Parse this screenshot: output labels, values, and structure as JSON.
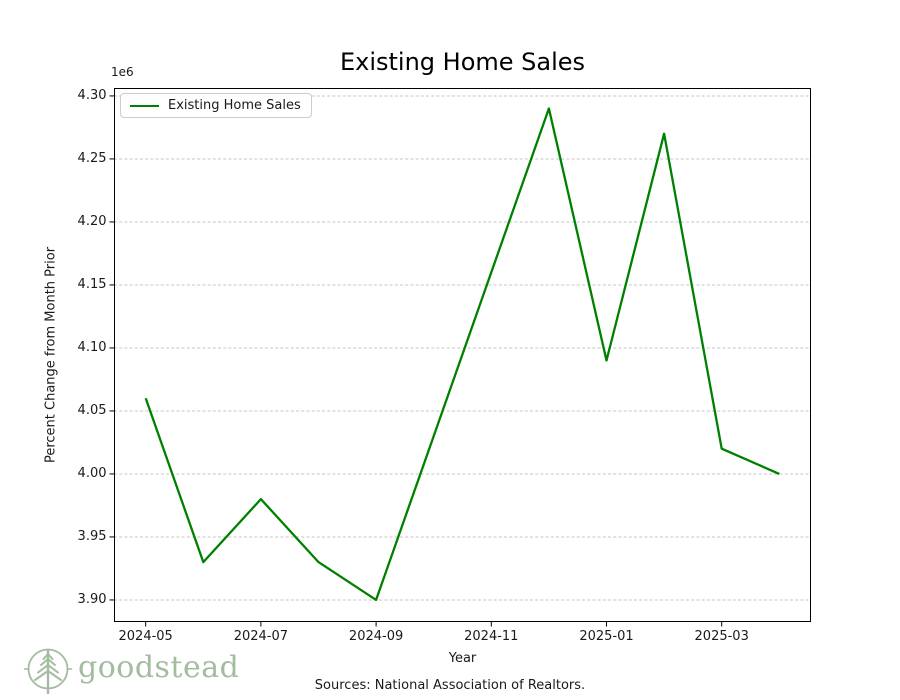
{
  "title": "Existing Home Sales",
  "axes": {
    "ylabel": "Percent Change from Month Prior",
    "xlabel": "Year",
    "offset_label": "1e6"
  },
  "legend": {
    "label": "Existing Home Sales"
  },
  "footer": {
    "sources": "Sources: National Association of Realtors.",
    "brand": "goodstead"
  },
  "colors": {
    "line": "#008000",
    "grid": "#c6c6c6",
    "spine": "#000000",
    "brand": "#a3bca0",
    "legend_border": "#cccccc"
  },
  "chart_data": {
    "type": "line",
    "title": "Existing Home Sales",
    "xlabel": "Year",
    "ylabel": "Percent Change from Month Prior",
    "grid": "horizontal-dashed",
    "legend_position": "upper left",
    "series": [
      {
        "name": "Existing Home Sales",
        "color": "#008000",
        "x": [
          "2024-05",
          "2024-06",
          "2024-07",
          "2024-08",
          "2024-09",
          "2024-10",
          "2024-11",
          "2024-12",
          "2025-01",
          "2025-02",
          "2025-03",
          "2025-04"
        ],
        "values": [
          4060000,
          3930000,
          3980000,
          3930000,
          3900000,
          4030000,
          4160000,
          4290000,
          4090000,
          4270000,
          4020000,
          4000000
        ]
      }
    ],
    "yaxis": {
      "multiplier_label": "1e6",
      "ticks": [
        4300000,
        4250000,
        4200000,
        4150000,
        4100000,
        4050000,
        4000000,
        3950000,
        3900000
      ],
      "range": [
        3882500,
        4306300
      ]
    },
    "xaxis": {
      "tick_labels": [
        "2024-05",
        "2024-07",
        "2024-09",
        "2024-11",
        "2025-01",
        "2025-03"
      ],
      "range_index": [
        -0.55,
        11.55
      ]
    }
  }
}
